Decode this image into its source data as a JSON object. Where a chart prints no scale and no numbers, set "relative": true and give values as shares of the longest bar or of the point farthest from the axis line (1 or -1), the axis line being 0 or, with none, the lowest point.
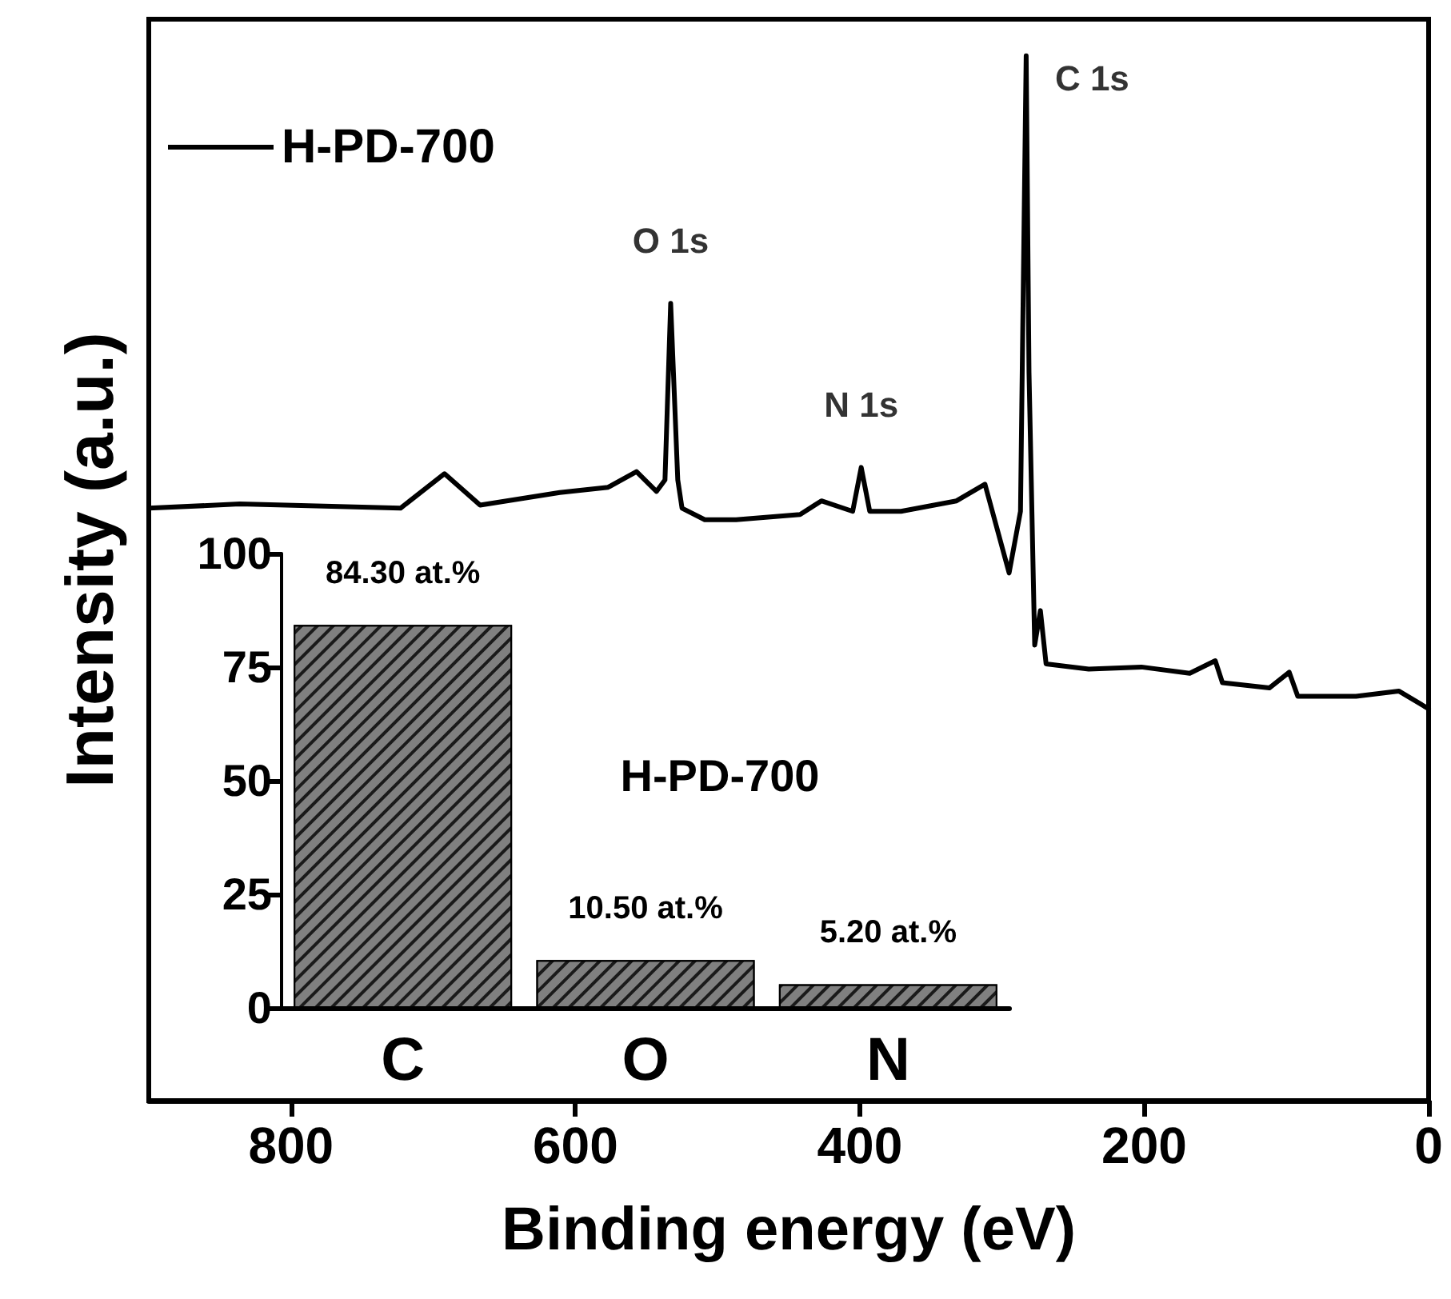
{
  "chart_data": [
    {
      "type": "line",
      "xlabel": "Binding energy (eV)",
      "ylabel": "Intensity (a.u.)",
      "xlim": [
        900,
        0
      ],
      "xticks": [
        800,
        600,
        400,
        200,
        0
      ],
      "relative": true,
      "legend": "top left",
      "grid": false,
      "series": [
        {
          "name": "H-PD-700",
          "color": "#000000",
          "x": [
            900,
            836,
            723,
            692,
            667,
            611,
            577,
            557,
            543,
            537,
            533,
            528,
            525,
            509,
            487,
            442,
            427,
            405,
            399,
            393,
            371,
            332,
            312,
            295,
            287,
            283,
            281,
            277,
            273,
            269,
            239,
            202,
            168,
            150,
            145,
            112,
            98,
            92,
            51,
            21,
            0
          ],
          "values": [
            0.567,
            0.571,
            0.567,
            0.6,
            0.57,
            0.582,
            0.587,
            0.602,
            0.583,
            0.594,
            0.763,
            0.594,
            0.567,
            0.556,
            0.556,
            0.561,
            0.574,
            0.564,
            0.606,
            0.564,
            0.564,
            0.574,
            0.59,
            0.505,
            0.564,
            1.0,
            0.697,
            0.436,
            0.469,
            0.418,
            0.413,
            0.415,
            0.409,
            0.421,
            0.4,
            0.395,
            0.41,
            0.387,
            0.387,
            0.392,
            0.375
          ]
        }
      ],
      "annotations": [
        {
          "text": "C 1s",
          "x": 283,
          "y": 1.0
        },
        {
          "text": "O 1s",
          "x": 533,
          "y": 0.763
        },
        {
          "text": "N 1s",
          "x": 399,
          "y": 0.606
        }
      ]
    },
    {
      "type": "bar",
      "categories": [
        "C",
        "O",
        "N"
      ],
      "values": [
        84.3,
        10.5,
        5.2
      ],
      "color": "#808080",
      "ylim": [
        0,
        100
      ],
      "yticks": [
        0,
        25,
        50,
        75,
        100
      ],
      "grid": false,
      "value_labels": [
        "84.30 at.%",
        "10.50 at.%",
        "5.20 at.%"
      ],
      "annotations": [
        "H-PD-700"
      ]
    }
  ]
}
